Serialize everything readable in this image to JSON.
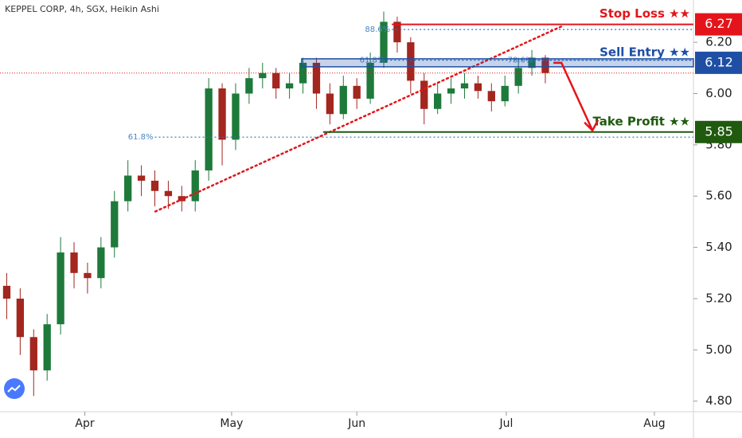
{
  "chart_data": {
    "type": "candlestick",
    "title": "KEPPEL CORP, 4h, SGX, Heikin Ashi",
    "open": [
      5.25,
      5.2,
      5.05,
      4.92,
      5.1,
      5.38,
      5.3,
      5.28,
      5.4,
      5.58,
      5.68,
      5.66,
      5.62,
      5.6,
      5.58,
      5.7,
      6.02,
      5.82,
      6.0,
      6.06,
      6.08,
      6.02,
      6.04,
      6.12,
      6.0,
      5.92,
      6.03,
      5.98,
      6.12,
      6.28,
      6.2,
      6.05,
      5.94,
      6.0,
      6.02,
      6.04,
      6.01,
      5.97,
      6.03,
      6.1,
      6.14
    ],
    "high": [
      5.3,
      5.24,
      5.08,
      5.14,
      5.44,
      5.42,
      5.34,
      5.44,
      5.62,
      5.74,
      5.72,
      5.7,
      5.66,
      5.64,
      5.74,
      6.06,
      6.04,
      6.04,
      6.1,
      6.12,
      6.1,
      6.08,
      6.14,
      6.14,
      6.04,
      6.07,
      6.06,
      6.16,
      6.32,
      6.3,
      6.22,
      6.08,
      6.04,
      6.06,
      6.08,
      6.07,
      6.04,
      6.07,
      6.14,
      6.17,
      6.15
    ],
    "low": [
      5.12,
      4.98,
      4.82,
      4.88,
      5.06,
      5.24,
      5.22,
      5.24,
      5.36,
      5.54,
      5.6,
      5.56,
      5.55,
      5.54,
      5.54,
      5.66,
      5.72,
      5.78,
      5.96,
      6.02,
      5.98,
      5.98,
      6.0,
      5.94,
      5.88,
      5.9,
      5.94,
      5.96,
      6.1,
      6.16,
      6.0,
      5.88,
      5.92,
      5.96,
      5.98,
      5.98,
      5.93,
      5.95,
      6.0,
      6.07,
      6.04
    ],
    "close": [
      5.2,
      5.05,
      4.92,
      5.1,
      5.38,
      5.3,
      5.28,
      5.4,
      5.58,
      5.68,
      5.66,
      5.62,
      5.6,
      5.58,
      5.7,
      6.02,
      5.82,
      6.0,
      6.06,
      6.08,
      6.02,
      6.04,
      6.12,
      6.0,
      5.92,
      6.03,
      5.98,
      6.12,
      6.28,
      6.2,
      6.05,
      5.94,
      6.0,
      6.02,
      6.04,
      6.01,
      5.97,
      6.03,
      6.1,
      6.14,
      6.08
    ],
    "up_color": "#1e7a3a",
    "down_color": "#a3261f",
    "xlim": [
      -0.5,
      51
    ],
    "xticks": [
      {
        "value": 5.8,
        "label": "Apr"
      },
      {
        "value": 16.7,
        "label": "May"
      },
      {
        "value": 26,
        "label": "Jun"
      },
      {
        "value": 37.1,
        "label": "Jul"
      },
      {
        "value": 48.1,
        "label": "Aug"
      }
    ],
    "ylim": [
      4.765,
      6.365
    ],
    "yticks": [
      {
        "value": 4.8,
        "label": "4.80"
      },
      {
        "value": 5.0,
        "label": "5.00"
      },
      {
        "value": 5.2,
        "label": "5.20"
      },
      {
        "value": 5.4,
        "label": "5.40"
      },
      {
        "value": 5.6,
        "label": "5.60"
      },
      {
        "value": 5.8,
        "label": "5.80"
      },
      {
        "value": 6.0,
        "label": "6.00"
      },
      {
        "value": 6.2,
        "label": "6.20"
      }
    ],
    "levels": [
      {
        "name": "Stop Loss ★★",
        "value": 6.27,
        "from": 28.6,
        "color": "#e3151a"
      },
      {
        "name": "Sell Entry ★★",
        "value": 6.12,
        "from": 21.9,
        "color": "#1e4fa5"
      },
      {
        "name": "Take Profit ★★",
        "value": 5.85,
        "from": 23.5,
        "color": "#1f5a0f"
      }
    ],
    "fib": [
      {
        "label": "88.6%",
        "value": 6.25,
        "from": 28.6
      },
      {
        "label": "61.8%",
        "value": 6.13,
        "from": 28.2
      },
      {
        "label": "78.6%",
        "value": 6.13,
        "from": 39.2
      },
      {
        "label": "61.8%",
        "value": 5.83,
        "from": 11.0
      }
    ],
    "trendline": {
      "x": [
        11.04,
        41.2
      ],
      "y": [
        5.54,
        6.262
      ],
      "color": "#e3151a"
    }
  }
}
